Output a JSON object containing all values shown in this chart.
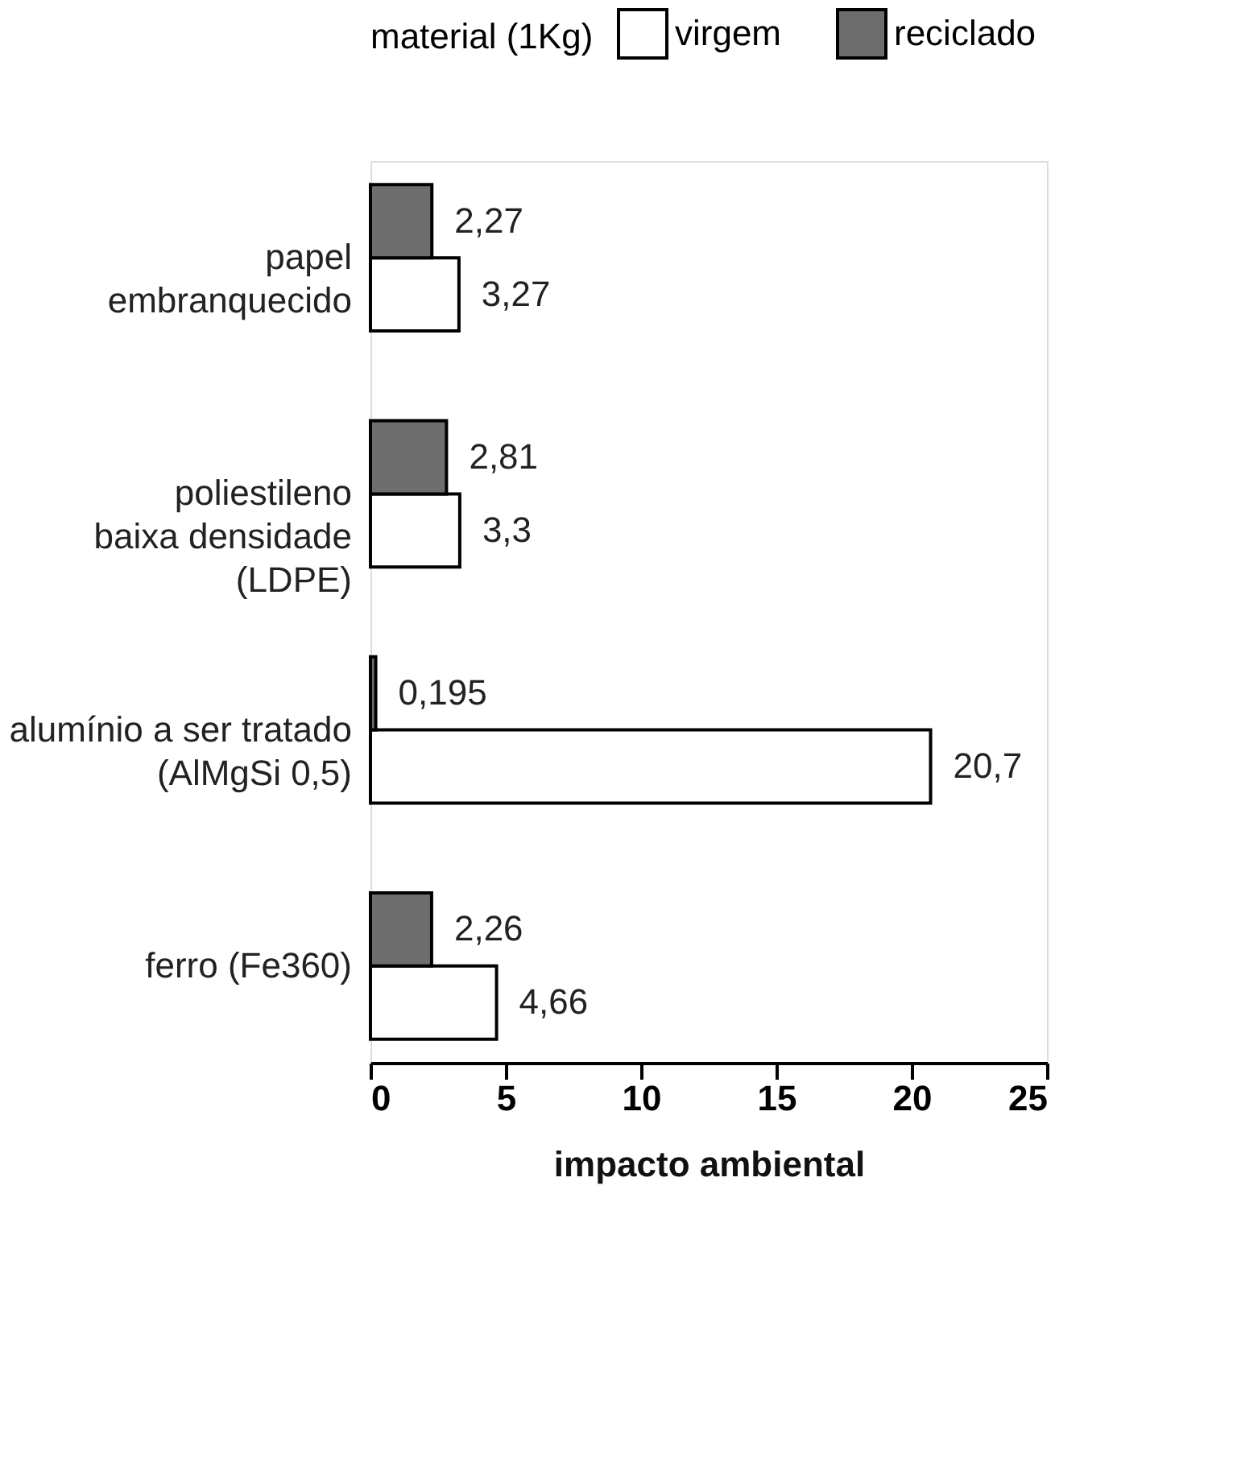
{
  "chart_data": {
    "type": "bar",
    "orientation": "horizontal",
    "legend_title": "material (1Kg)",
    "legend": "top",
    "xlabel": "impacto ambiental",
    "categories": [
      "papel\nembranquecido",
      "poliestileno\nbaixa densidade\n(LDPE)",
      "alumínio a ser tratado\n(AlMgSi 0,5)",
      "ferro (Fe360)"
    ],
    "xlim": [
      0,
      25
    ],
    "xticks": [
      0,
      5,
      10,
      15,
      20,
      25
    ],
    "grid": false,
    "series": [
      {
        "name": "virgem",
        "color": "#ffffff",
        "values": [
          3.27,
          3.3,
          20.7,
          4.66
        ],
        "value_labels": [
          "3,27",
          "3,3",
          "20,7",
          "4,66"
        ]
      },
      {
        "name": "reciclado",
        "color": "#6d6d6d",
        "values": [
          2.27,
          2.81,
          0.195,
          2.26
        ],
        "value_labels": [
          "2,27",
          "2,81",
          "0,195",
          "2,26"
        ]
      }
    ]
  }
}
